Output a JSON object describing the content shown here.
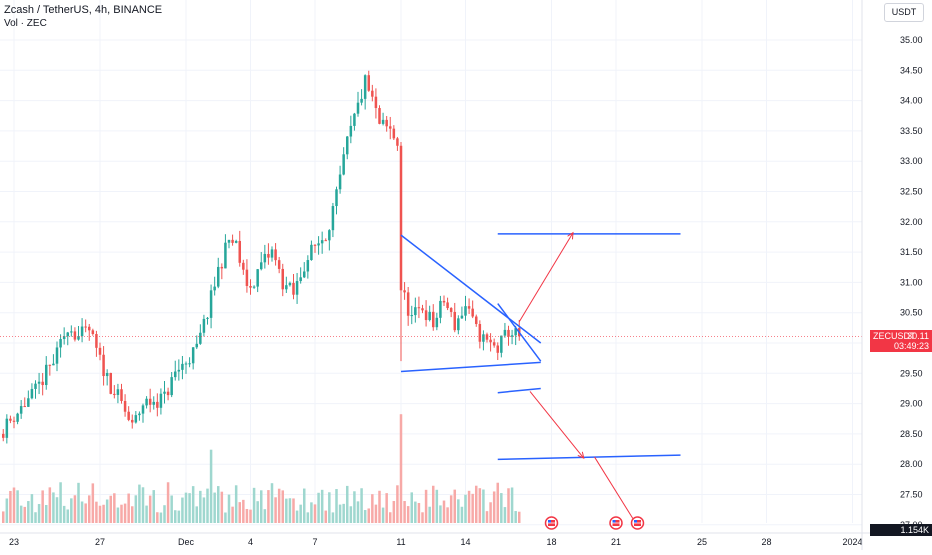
{
  "header": {
    "title": "Zcash / TetherUS, 4h, BINANCE",
    "indicator": "Vol · ZEC",
    "currency_button": "USDT"
  },
  "price_tag": {
    "symbol": "ZECUSDT",
    "price": "30.11",
    "countdown": "03:49:23"
  },
  "volume_last_label": "1.154K",
  "colors": {
    "up": "#26a69a",
    "down": "#ef5350",
    "vol_up": "#9fd7cf",
    "vol_down": "#f7a9a7",
    "drawing": "#2962ff",
    "projection": "#f23645"
  },
  "events": [
    {
      "x": "Dec 18",
      "icon": "us-flag-icon"
    },
    {
      "x": "Dec 21",
      "icon": "us-flag-icon"
    },
    {
      "x": "Dec 22",
      "icon": "us-flag-icon"
    }
  ],
  "chart_data": {
    "type": "candlestick",
    "timeframe": "4h",
    "y_axis": {
      "ticks": [
        "35.00",
        "34.50",
        "34.00",
        "33.50",
        "33.00",
        "32.50",
        "32.00",
        "31.50",
        "31.00",
        "30.50",
        "30.00",
        "29.50",
        "29.00",
        "28.50",
        "28.00",
        "27.50",
        "27.00"
      ],
      "range": [
        26.98,
        35.3
      ]
    },
    "x_axis": {
      "ticks": [
        {
          "label": "23",
          "date": "Nov 23"
        },
        {
          "label": "27",
          "date": "Nov 27"
        },
        {
          "label": "Dec",
          "date": "Dec 1"
        },
        {
          "label": "4",
          "date": "Dec 4"
        },
        {
          "label": "7",
          "date": "Dec 7"
        },
        {
          "label": "11",
          "date": "Dec 11"
        },
        {
          "label": "14",
          "date": "Dec 14"
        },
        {
          "label": "18",
          "date": "Dec 18"
        },
        {
          "label": "21",
          "date": "Dec 21"
        },
        {
          "label": "25",
          "date": "Dec 25"
        },
        {
          "label": "28",
          "date": "Dec 28"
        },
        {
          "label": "2024",
          "date": "Jan 1"
        }
      ]
    },
    "last_price": 30.11,
    "anchors": [
      [
        "Nov 22 08:00",
        28.5
      ],
      [
        "Nov 23 00:00",
        28.8
      ],
      [
        "Nov 24 00:00",
        29.2
      ],
      [
        "Nov 25 00:00",
        29.8
      ],
      [
        "Nov 25 12:00",
        30.3
      ],
      [
        "Nov 26 00:00",
        30.1
      ],
      [
        "Nov 26 12:00",
        30.2
      ],
      [
        "Nov 27 00:00",
        29.7
      ],
      [
        "Nov 27 12:00",
        29.3
      ],
      [
        "Nov 28 00:00",
        29.0
      ],
      [
        "Nov 28 12:00",
        28.6
      ],
      [
        "Nov 29 00:00",
        29.0
      ],
      [
        "Nov 30 00:00",
        29.1
      ],
      [
        "Nov 30 12:00",
        29.5
      ],
      [
        "Dec 1 00:00",
        29.7
      ],
      [
        "Dec 1 12:00",
        29.9
      ],
      [
        "Dec 2 00:00",
        30.5
      ],
      [
        "Dec 2 12:00",
        31.2
      ],
      [
        "Dec 3 00:00",
        31.7
      ],
      [
        "Dec 3 08:00",
        31.6
      ],
      [
        "Dec 3 16:00",
        31.1
      ],
      [
        "Dec 4 00:00",
        30.9
      ],
      [
        "Dec 4 12:00",
        31.3
      ],
      [
        "Dec 5 00:00",
        31.5
      ],
      [
        "Dec 5 12:00",
        31.0
      ],
      [
        "Dec 6 00:00",
        30.8
      ],
      [
        "Dec 6 12:00",
        31.3
      ],
      [
        "Dec 7 00:00",
        31.6
      ],
      [
        "Dec 7 12:00",
        31.8
      ],
      [
        "Dec 8 00:00",
        32.4
      ],
      [
        "Dec 8 12:00",
        33.3
      ],
      [
        "Dec 9 00:00",
        33.9
      ],
      [
        "Dec 9 08:00",
        34.3
      ],
      [
        "Dec 9 16:00",
        34.0
      ],
      [
        "Dec 10 00:00",
        33.6
      ],
      [
        "Dec 10 12:00",
        33.5
      ],
      [
        "Dec 10 20:00",
        33.3
      ],
      [
        "Dec 11 00:00",
        30.9
      ],
      [
        "Dec 11 12:00",
        30.4
      ],
      [
        "Dec 12 00:00",
        30.6
      ],
      [
        "Dec 12 12:00",
        30.3
      ],
      [
        "Dec 13 00:00",
        30.7
      ],
      [
        "Dec 13 12:00",
        30.3
      ],
      [
        "Dec 14 00:00",
        30.6
      ],
      [
        "Dec 14 12:00",
        30.2
      ],
      [
        "Dec 15 00:00",
        30.0
      ],
      [
        "Dec 15 12:00",
        29.9
      ],
      [
        "Dec 16 00:00",
        30.2
      ],
      [
        "Dec 16 12:00",
        30.1
      ]
    ],
    "drawings": {
      "triangle_upper": [
        [
          "Dec 11 00:00",
          31.78
        ],
        [
          "Dec 17 12:00",
          30.0
        ]
      ],
      "triangle_lower": [
        [
          "Dec 11 00:00",
          29.53
        ],
        [
          "Dec 17 12:00",
          29.68
        ]
      ],
      "channel_upper": [
        [
          "Dec 15 12:00",
          30.65
        ],
        [
          "Dec 17 12:00",
          29.7
        ]
      ],
      "channel_lower": [
        [
          "Dec 15 12:00",
          29.18
        ],
        [
          "Dec 17 12:00",
          29.25
        ]
      ],
      "target_high": [
        [
          "Dec 15 12:00",
          31.8
        ],
        [
          "Dec 24 00:00",
          31.8
        ]
      ],
      "target_low": [
        [
          "Dec 15 12:00",
          28.08
        ],
        [
          "Dec 24 00:00",
          28.15
        ]
      ],
      "arrow_up": [
        [
          "Dec 16 12:00",
          30.35
        ],
        [
          "Dec 19 00:00",
          31.82
        ]
      ],
      "arrow_down_1": [
        [
          "Dec 17 00:00",
          29.2
        ],
        [
          "Dec 19 12:00",
          28.1
        ]
      ],
      "arrow_down_2": [
        [
          "Dec 20 00:00",
          28.12
        ],
        [
          "Dec 22 00:00",
          26.98
        ]
      ]
    }
  }
}
